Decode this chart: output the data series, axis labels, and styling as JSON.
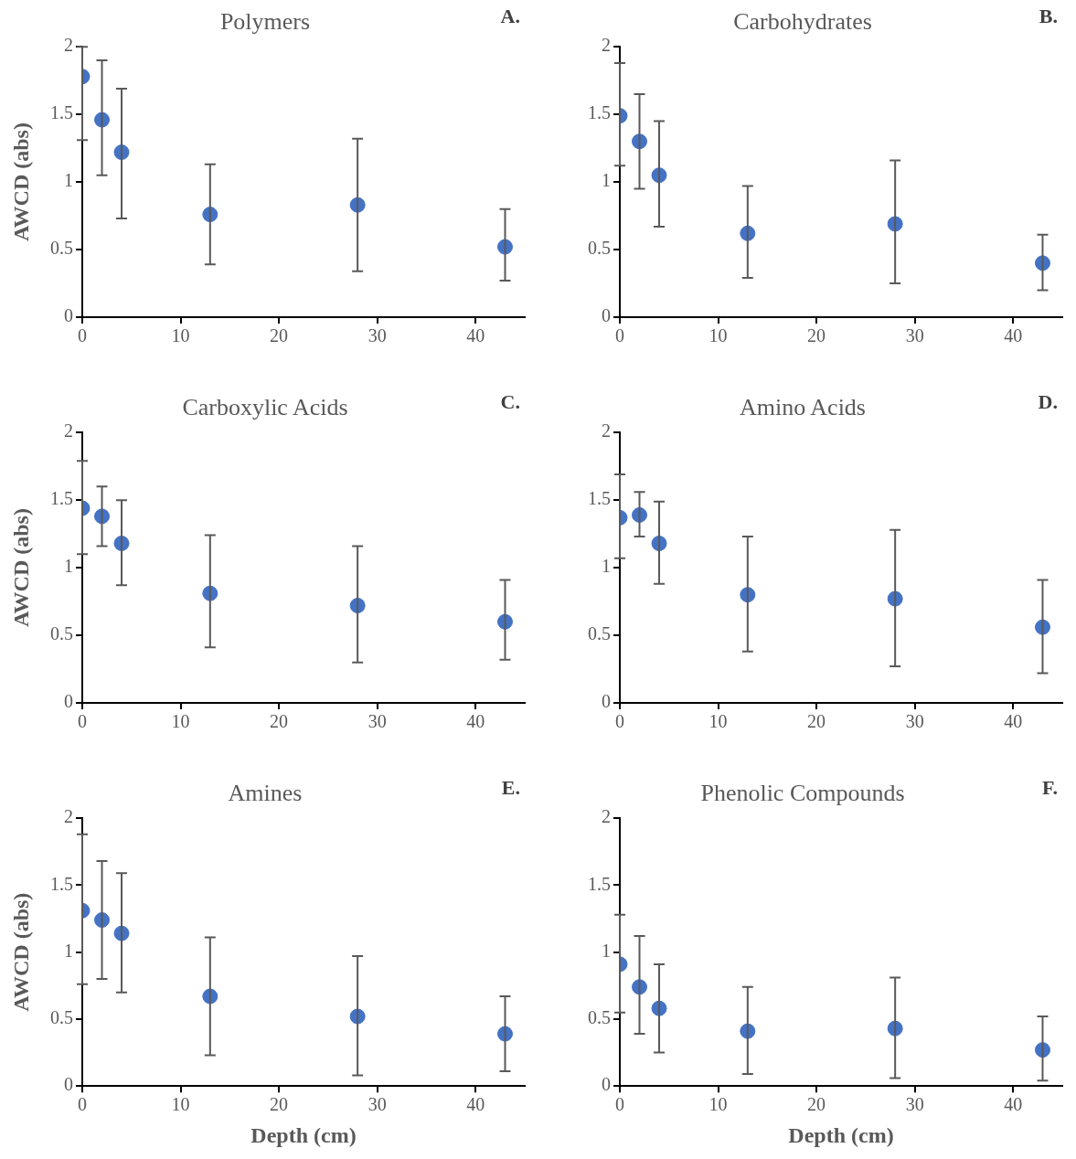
{
  "chart_data": [
    {
      "type": "scatter",
      "title": "Polymers",
      "annotations": [
        "A."
      ],
      "ylabel": "AWCD (abs)",
      "x": [
        0,
        2,
        4,
        13,
        28,
        43
      ],
      "series": [
        {
          "color": "#4472c4",
          "values": [
            1.78,
            1.46,
            1.22,
            0.76,
            0.83,
            0.52
          ],
          "errors": [
            [
              1.31,
              2
            ],
            [
              1.05,
              1.9
            ],
            [
              0.73,
              1.69
            ],
            [
              0.39,
              1.13
            ],
            [
              0.34,
              1.32
            ],
            [
              0.27,
              0.8
            ]
          ]
        }
      ],
      "xlim": [
        0,
        45
      ],
      "xticks": [
        0,
        10,
        20,
        30,
        40
      ],
      "ylim": [
        0,
        2
      ],
      "yticks": [
        0,
        0.5,
        1,
        1.5,
        2
      ],
      "grid": false,
      "legend": false,
      "marker": "circle"
    },
    {
      "type": "scatter",
      "title": "Carbohydrates",
      "annotations": [
        "B."
      ],
      "x": [
        0,
        2,
        4,
        13,
        28,
        43
      ],
      "series": [
        {
          "color": "#4472c4",
          "values": [
            1.49,
            1.3,
            1.05,
            0.62,
            0.69,
            0.4
          ],
          "errors": [
            [
              1.12,
              1.88
            ],
            [
              0.95,
              1.65
            ],
            [
              0.67,
              1.45
            ],
            [
              0.29,
              0.97
            ],
            [
              0.25,
              1.16
            ],
            [
              0.2,
              0.61
            ]
          ]
        }
      ],
      "xlim": [
        0,
        45
      ],
      "xticks": [
        0,
        10,
        20,
        30,
        40
      ],
      "ylim": [
        0,
        2
      ],
      "yticks": [
        0,
        0.5,
        1,
        1.5,
        2
      ],
      "grid": false,
      "legend": false,
      "marker": "circle"
    },
    {
      "type": "scatter",
      "title": "Carboxylic Acids",
      "annotations": [
        "C."
      ],
      "ylabel": "AWCD (abs)",
      "x": [
        0,
        2,
        4,
        13,
        28,
        43
      ],
      "series": [
        {
          "color": "#4472c4",
          "values": [
            1.44,
            1.38,
            1.18,
            0.81,
            0.72,
            0.6
          ],
          "errors": [
            [
              1.1,
              1.79
            ],
            [
              1.16,
              1.6
            ],
            [
              0.87,
              1.5
            ],
            [
              0.41,
              1.24
            ],
            [
              0.3,
              1.16
            ],
            [
              0.32,
              0.91
            ]
          ]
        }
      ],
      "xlim": [
        0,
        45
      ],
      "xticks": [
        0,
        10,
        20,
        30,
        40
      ],
      "ylim": [
        0,
        2
      ],
      "yticks": [
        0,
        0.5,
        1,
        1.5,
        2
      ],
      "grid": false,
      "legend": false,
      "marker": "circle"
    },
    {
      "type": "scatter",
      "title": "Amino Acids",
      "annotations": [
        "D."
      ],
      "x": [
        0,
        2,
        4,
        13,
        28,
        43
      ],
      "series": [
        {
          "color": "#4472c4",
          "values": [
            1.37,
            1.39,
            1.18,
            0.8,
            0.77,
            0.56
          ],
          "errors": [
            [
              1.07,
              1.69
            ],
            [
              1.23,
              1.56
            ],
            [
              0.88,
              1.49
            ],
            [
              0.38,
              1.23
            ],
            [
              0.27,
              1.28
            ],
            [
              0.22,
              0.91
            ]
          ]
        }
      ],
      "xlim": [
        0,
        45
      ],
      "xticks": [
        0,
        10,
        20,
        30,
        40
      ],
      "ylim": [
        0,
        2
      ],
      "yticks": [
        0,
        0.5,
        1,
        1.5,
        2
      ],
      "grid": false,
      "legend": false,
      "marker": "circle"
    },
    {
      "type": "scatter",
      "title": "Amines",
      "annotations": [
        "E."
      ],
      "xlabel": "Depth (cm)",
      "ylabel": "AWCD (abs)",
      "x": [
        0,
        2,
        4,
        13,
        28,
        43
      ],
      "series": [
        {
          "color": "#4472c4",
          "values": [
            1.31,
            1.24,
            1.14,
            0.67,
            0.52,
            0.39
          ],
          "errors": [
            [
              0.76,
              1.88
            ],
            [
              0.8,
              1.68
            ],
            [
              0.7,
              1.59
            ],
            [
              0.23,
              1.11
            ],
            [
              0.08,
              0.97
            ],
            [
              0.11,
              0.67
            ]
          ]
        }
      ],
      "xlim": [
        0,
        45
      ],
      "xticks": [
        0,
        10,
        20,
        30,
        40
      ],
      "ylim": [
        0,
        2
      ],
      "yticks": [
        0,
        0.5,
        1,
        1.5,
        2
      ],
      "grid": false,
      "legend": false,
      "marker": "circle"
    },
    {
      "type": "scatter",
      "title": "Phenolic Compounds",
      "annotations": [
        "F."
      ],
      "xlabel": "Depth (cm)",
      "x": [
        0,
        2,
        4,
        13,
        28,
        43
      ],
      "series": [
        {
          "color": "#4472c4",
          "values": [
            0.91,
            0.74,
            0.58,
            0.41,
            0.43,
            0.27
          ],
          "errors": [
            [
              0.55,
              1.28
            ],
            [
              0.39,
              1.12
            ],
            [
              0.25,
              0.91
            ],
            [
              0.09,
              0.74
            ],
            [
              0.06,
              0.81
            ],
            [
              0.04,
              0.52
            ]
          ]
        }
      ],
      "xlim": [
        0,
        45
      ],
      "xticks": [
        0,
        10,
        20,
        30,
        40
      ],
      "ylim": [
        0,
        2
      ],
      "yticks": [
        0,
        0.5,
        1,
        1.5,
        2
      ],
      "grid": false,
      "legend": false,
      "marker": "circle"
    }
  ]
}
